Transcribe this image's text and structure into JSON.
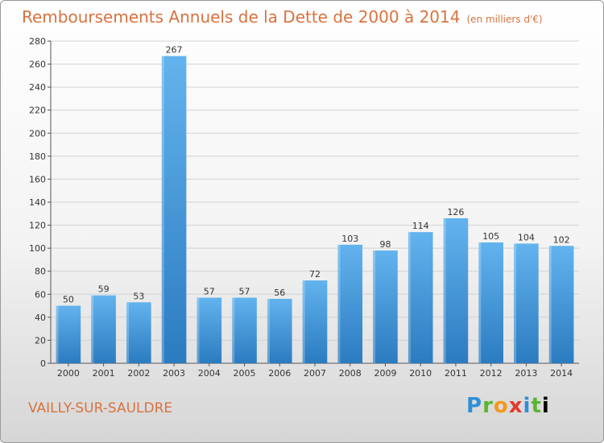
{
  "header": {
    "title": "Remboursements Annuels de la Dette de 2000 à 2014",
    "unit": "(en milliers d'€)"
  },
  "footer": {
    "city": "VAILLY-SUR-SAULDRE",
    "logo_letters": [
      "P",
      "r",
      "o",
      "x",
      "i",
      "t",
      "i"
    ]
  },
  "colors": {
    "bar_light": "#62b3ee",
    "bar_dark": "#2b7bc0",
    "title": "#d9723e",
    "grid": "#d2d2d2"
  },
  "chart_data": {
    "type": "bar",
    "title": "Remboursements Annuels de la Dette de 2000 à 2014",
    "subtitle": "(en milliers d'€)",
    "xlabel": "",
    "ylabel": "",
    "categories": [
      "2000",
      "2001",
      "2002",
      "2003",
      "2004",
      "2005",
      "2006",
      "2007",
      "2008",
      "2009",
      "2010",
      "2011",
      "2012",
      "2013",
      "2014"
    ],
    "values": [
      50,
      59,
      53,
      267,
      57,
      57,
      56,
      72,
      103,
      98,
      114,
      126,
      105,
      104,
      102
    ],
    "ylim": [
      0,
      280
    ],
    "yticks": [
      0,
      20,
      40,
      60,
      80,
      100,
      120,
      140,
      160,
      180,
      200,
      220,
      240,
      260,
      280
    ],
    "grid": true,
    "data_labels": true
  }
}
